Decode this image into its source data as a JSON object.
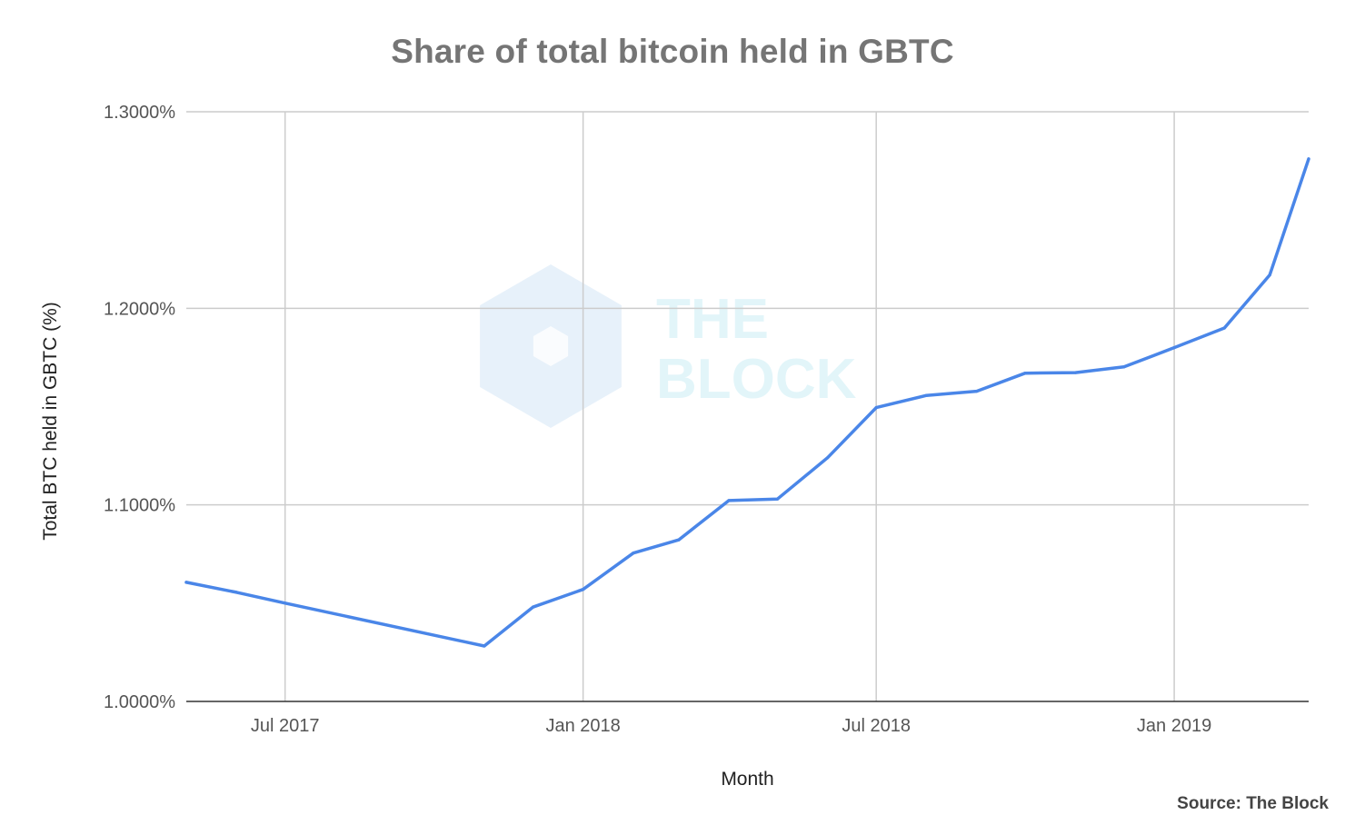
{
  "chart_data": {
    "type": "line",
    "title": "Share of total bitcoin held in GBTC",
    "xlabel": "Month",
    "ylabel": "Total BTC held in GBTC (%)",
    "ylim": [
      1.0,
      1.3
    ],
    "xlim": [
      "2017-05-01",
      "2019-03-25"
    ],
    "yticks": [
      {
        "value": 1.0,
        "label": "1.0000%"
      },
      {
        "value": 1.1,
        "label": "1.1000%"
      },
      {
        "value": 1.2,
        "label": "1.2000%"
      },
      {
        "value": 1.3,
        "label": "1.3000%"
      }
    ],
    "xticks": [
      {
        "date": "2017-07-01",
        "label": "Jul 2017"
      },
      {
        "date": "2018-01-01",
        "label": "Jan 2018"
      },
      {
        "date": "2018-07-01",
        "label": "Jul 2018"
      },
      {
        "date": "2019-01-01",
        "label": "Jan 2019"
      }
    ],
    "grid": true,
    "series": [
      {
        "color": "#4a86e8",
        "points": [
          {
            "x": "2017-05-01",
            "y": 1.0606
          },
          {
            "x": "2017-06-01",
            "y": 1.0555
          },
          {
            "x": "2017-07-01",
            "y": 1.05
          },
          {
            "x": "2017-11-01",
            "y": 1.0282
          },
          {
            "x": "2017-12-01",
            "y": 1.048
          },
          {
            "x": "2018-01-01",
            "y": 1.057
          },
          {
            "x": "2018-02-01",
            "y": 1.0755
          },
          {
            "x": "2018-03-01",
            "y": 1.0822
          },
          {
            "x": "2018-04-01",
            "y": 1.1022
          },
          {
            "x": "2018-05-01",
            "y": 1.103
          },
          {
            "x": "2018-06-01",
            "y": 1.124
          },
          {
            "x": "2018-07-01",
            "y": 1.1495
          },
          {
            "x": "2018-08-01",
            "y": 1.1557
          },
          {
            "x": "2018-09-01",
            "y": 1.1578
          },
          {
            "x": "2018-10-01",
            "y": 1.167
          },
          {
            "x": "2018-11-01",
            "y": 1.1673
          },
          {
            "x": "2018-12-01",
            "y": 1.1702
          },
          {
            "x": "2019-01-01",
            "y": 1.18
          },
          {
            "x": "2019-02-01",
            "y": 1.19
          },
          {
            "x": "2019-03-01",
            "y": 1.217
          },
          {
            "x": "2019-03-25",
            "y": 1.276
          }
        ]
      }
    ],
    "watermark": [
      "THE",
      "BLOCK"
    ]
  },
  "source": "Source: The Block"
}
